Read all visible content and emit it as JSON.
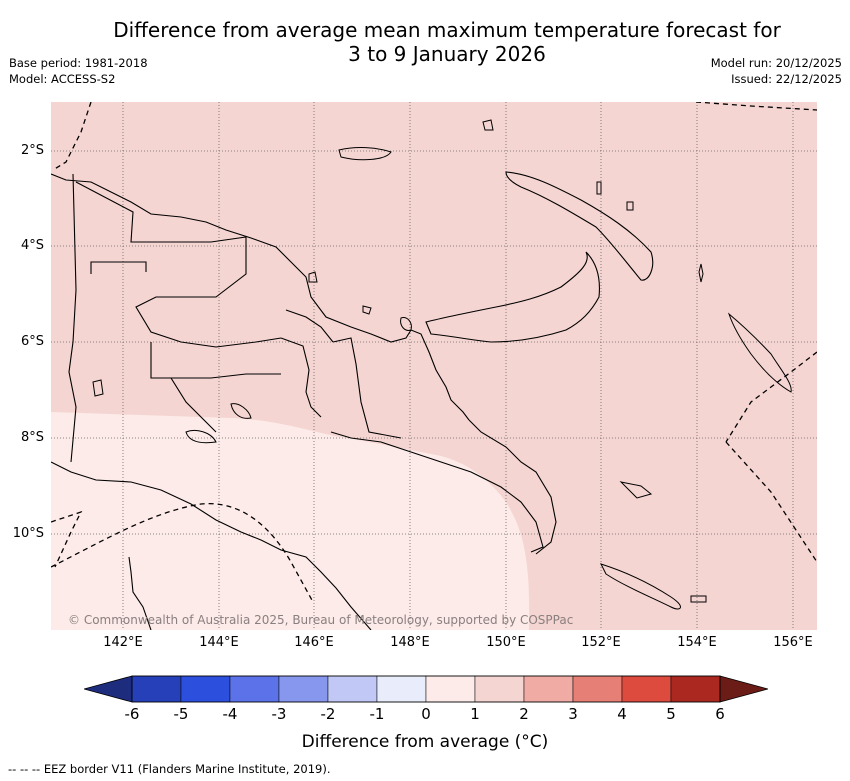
{
  "title": {
    "line1": "Difference from average mean maximum temperature forecast for",
    "line2": "3 to 9 January 2026"
  },
  "meta_left": {
    "base_period": "Base period: 1981-2018",
    "model": "Model: ACCESS-S2"
  },
  "meta_right": {
    "model_run": "Model run: 20/12/2025",
    "issued": "Issued: 22/12/2025"
  },
  "map": {
    "lat_labels": [
      "2°S",
      "4°S",
      "6°S",
      "8°S",
      "10°S"
    ],
    "lon_labels": [
      "142°E",
      "144°E",
      "146°E",
      "148°E",
      "150°E",
      "152°E",
      "154°E",
      "156°E"
    ],
    "copyright": "© Commonwealth of Australia 2025, Bureau of Meteorology, supported by COSPPac",
    "fill_colors": {
      "zero_to_one": "#fcebe8",
      "one_to_two": "#f5d5d2"
    }
  },
  "colorbar": {
    "title": "Difference from average (°C)",
    "tick_labels": [
      "-6",
      "-5",
      "-4",
      "-3",
      "-2",
      "-1",
      "0",
      "1",
      "2",
      "3",
      "4",
      "5",
      "6"
    ],
    "colors": [
      "#1e2c7e",
      "#2540b8",
      "#2d4fdd",
      "#5b72e8",
      "#8897ee",
      "#c1c8f5",
      "#e9ecfb",
      "#fcebe8",
      "#f5d5d2",
      "#f0aba4",
      "#e67f76",
      "#dc4b3e",
      "#ab2821",
      "#6b1c17"
    ]
  },
  "legend_note": "-- -- -- EEZ border V11 (Flanders Marine Institute, 2019)."
}
